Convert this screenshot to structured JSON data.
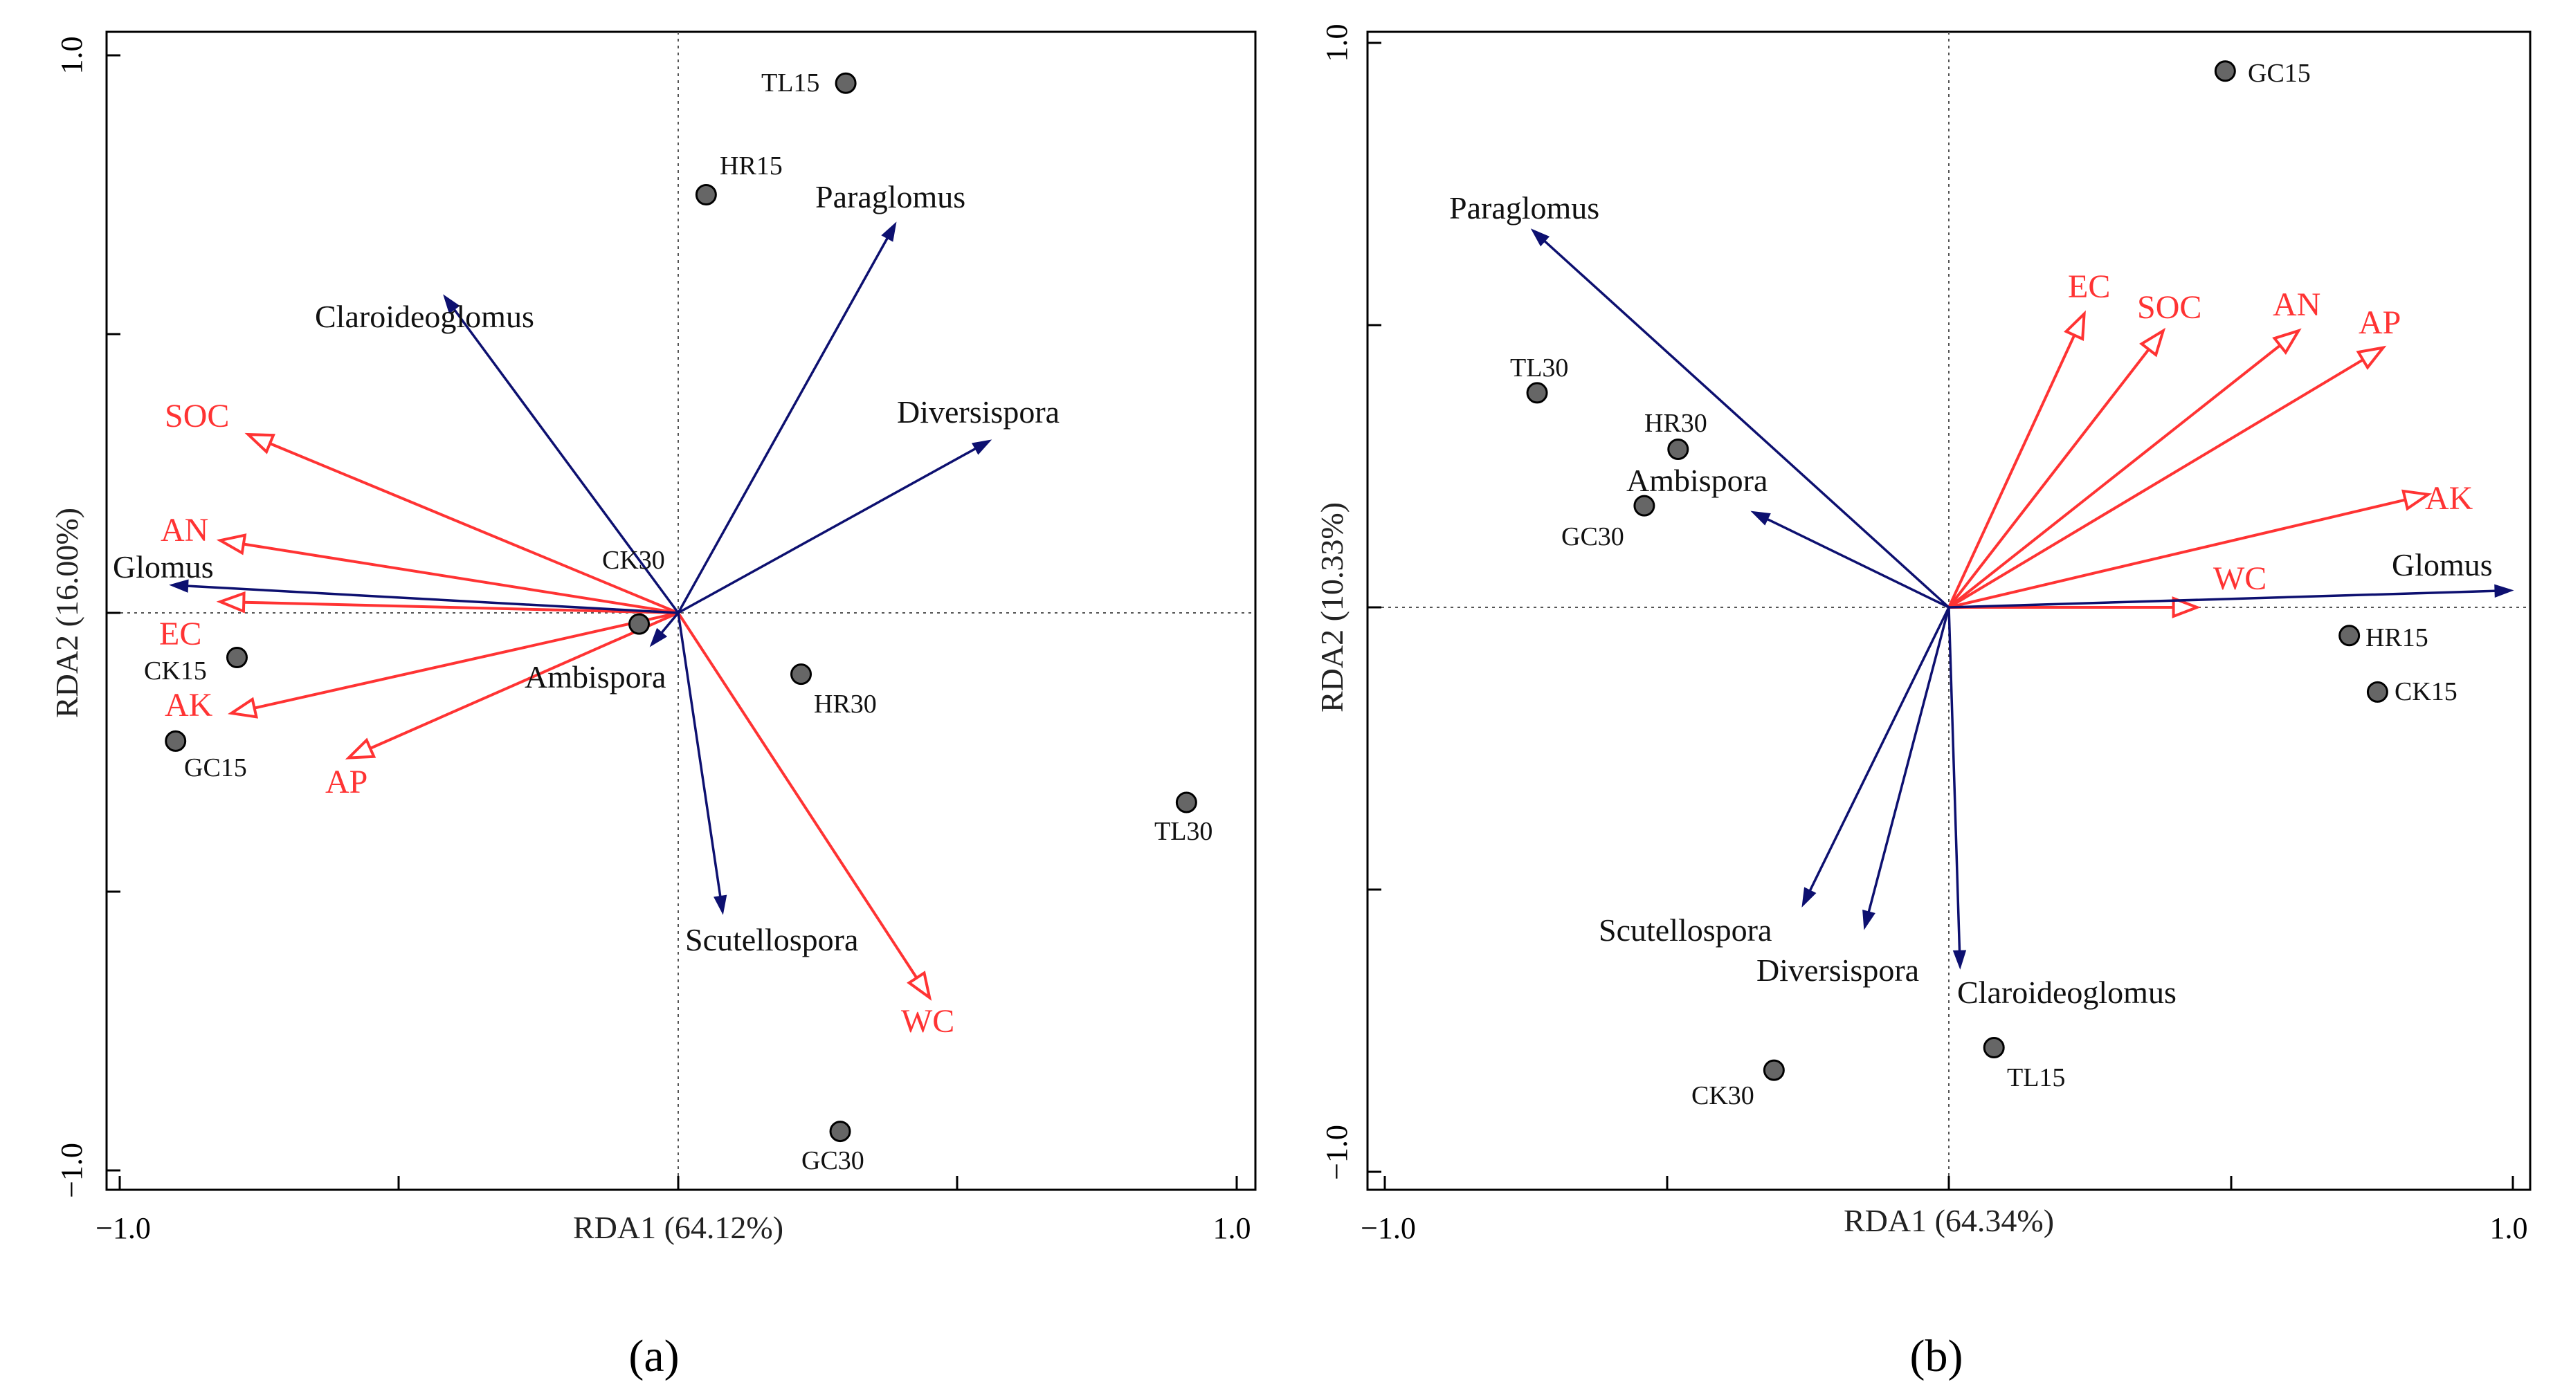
{
  "colors": {
    "species": "#0d1070",
    "environment": "#ff3333",
    "point": "#666666",
    "point_edge": "#000000"
  },
  "chart_data": [
    {
      "type": "scatter",
      "panel_label": "(a)",
      "xlabel": "RDA1 (64.12%)",
      "ylabel": "RDA2 (16.00%)",
      "xlim": [
        -1.0,
        1.0
      ],
      "ylim": [
        -1.0,
        1.0
      ],
      "x_ticklabels": [
        "−1.0",
        "1.0"
      ],
      "y_ticklabels": [
        "1.0",
        "−1.0"
      ],
      "samples": [
        {
          "name": "TL15",
          "x": 0.3,
          "y": 0.95
        },
        {
          "name": "HR15",
          "x": 0.05,
          "y": 0.75
        },
        {
          "name": "CK30",
          "x": -0.07,
          "y": -0.02
        },
        {
          "name": "CK15",
          "x": -0.79,
          "y": -0.08
        },
        {
          "name": "GC15",
          "x": -0.9,
          "y": -0.23
        },
        {
          "name": "HR30",
          "x": 0.22,
          "y": -0.11
        },
        {
          "name": "TL30",
          "x": 0.91,
          "y": -0.34
        },
        {
          "name": "GC30",
          "x": 0.29,
          "y": -0.93
        }
      ],
      "species": [
        {
          "name": "Paraglomus",
          "x": 0.39,
          "y": 0.7
        },
        {
          "name": "Claroideoglomus",
          "x": -0.42,
          "y": 0.57
        },
        {
          "name": "Diversispora",
          "x": 0.56,
          "y": 0.31
        },
        {
          "name": "Glomus",
          "x": -0.91,
          "y": 0.05
        },
        {
          "name": "Ambispora",
          "x": -0.05,
          "y": -0.06
        },
        {
          "name": "Scutellospora",
          "x": 0.08,
          "y": -0.54
        }
      ],
      "environment": [
        {
          "name": "SOC",
          "x": -0.77,
          "y": 0.32
        },
        {
          "name": "AN",
          "x": -0.82,
          "y": 0.13
        },
        {
          "name": "EC",
          "x": -0.82,
          "y": 0.02
        },
        {
          "name": "AK",
          "x": -0.8,
          "y": -0.18
        },
        {
          "name": "AP",
          "x": -0.59,
          "y": -0.26
        },
        {
          "name": "WC",
          "x": 0.45,
          "y": -0.69
        }
      ]
    },
    {
      "type": "scatter",
      "panel_label": "(b)",
      "xlabel": "RDA1 (64.34%)",
      "ylabel": "RDA2 (10.33%)",
      "xlim": [
        -1.0,
        1.0
      ],
      "ylim": [
        -1.0,
        1.0
      ],
      "x_ticklabels": [
        "−1.0",
        "1.0"
      ],
      "y_ticklabels": [
        "1.0",
        "−1.0"
      ],
      "samples": [
        {
          "name": "GC15",
          "x": 0.49,
          "y": 0.95
        },
        {
          "name": "TL30",
          "x": -0.73,
          "y": 0.38
        },
        {
          "name": "HR30",
          "x": -0.48,
          "y": 0.28
        },
        {
          "name": "GC30",
          "x": -0.54,
          "y": 0.18
        },
        {
          "name": "HR15",
          "x": 0.71,
          "y": -0.05
        },
        {
          "name": "CK15",
          "x": 0.76,
          "y": -0.15
        },
        {
          "name": "TL15",
          "x": 0.08,
          "y": -0.78
        },
        {
          "name": "CK30",
          "x": -0.31,
          "y": -0.82
        }
      ],
      "species": [
        {
          "name": "Paraglomus",
          "x": -0.74,
          "y": 0.67
        },
        {
          "name": "Ambispora",
          "x": -0.35,
          "y": 0.17
        },
        {
          "name": "Glomus",
          "x": 1.0,
          "y": 0.03
        },
        {
          "name": "Scutellospora",
          "x": -0.26,
          "y": -0.53
        },
        {
          "name": "Diversispora",
          "x": -0.15,
          "y": -0.57
        },
        {
          "name": "Claroideoglomus",
          "x": 0.02,
          "y": -0.64
        }
      ],
      "environment": [
        {
          "name": "EC",
          "x": 0.24,
          "y": 0.52
        },
        {
          "name": "SOC",
          "x": 0.38,
          "y": 0.49
        },
        {
          "name": "AN",
          "x": 0.62,
          "y": 0.49
        },
        {
          "name": "AP",
          "x": 0.77,
          "y": 0.46
        },
        {
          "name": "AK",
          "x": 0.85,
          "y": 0.2
        },
        {
          "name": "WC",
          "x": 0.44,
          "y": 0.0
        }
      ]
    }
  ]
}
